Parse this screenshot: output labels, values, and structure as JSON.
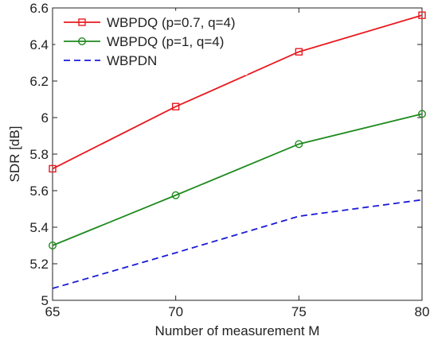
{
  "chart_data": {
    "type": "line",
    "title": "",
    "xlabel": "Number of measurement M",
    "ylabel": "SDR [dB]",
    "x": [
      65,
      70,
      75,
      80
    ],
    "xlim": [
      65,
      80
    ],
    "ylim": [
      5,
      6.6
    ],
    "xticks": [
      65,
      70,
      75,
      80
    ],
    "yticks": [
      5,
      5.2,
      5.4,
      5.6,
      5.8,
      6,
      6.2,
      6.4,
      6.6
    ],
    "xtick_labels": [
      "65",
      "70",
      "75",
      "80"
    ],
    "ytick_labels": [
      "5",
      "5.2",
      "5.4",
      "5.6",
      "5.8",
      "6",
      "6.2",
      "6.4",
      "6.6"
    ],
    "grid": false,
    "legend_position": "top-left",
    "series": [
      {
        "name": "WBPDQ (p=0.7, q=4)",
        "values": [
          5.72,
          6.06,
          6.36,
          6.56
        ],
        "color": "#e8191f",
        "marker": "square",
        "line": "solid"
      },
      {
        "name": "WBPDQ (p=1, q=4)",
        "values": [
          5.3,
          5.575,
          5.855,
          6.02
        ],
        "color": "#1e8a1e",
        "marker": "circle",
        "line": "solid"
      },
      {
        "name": "WBPDN",
        "values": [
          5.065,
          5.26,
          5.46,
          5.55
        ],
        "color": "#1a1ad6",
        "marker": "none",
        "line": "dashed"
      }
    ]
  }
}
